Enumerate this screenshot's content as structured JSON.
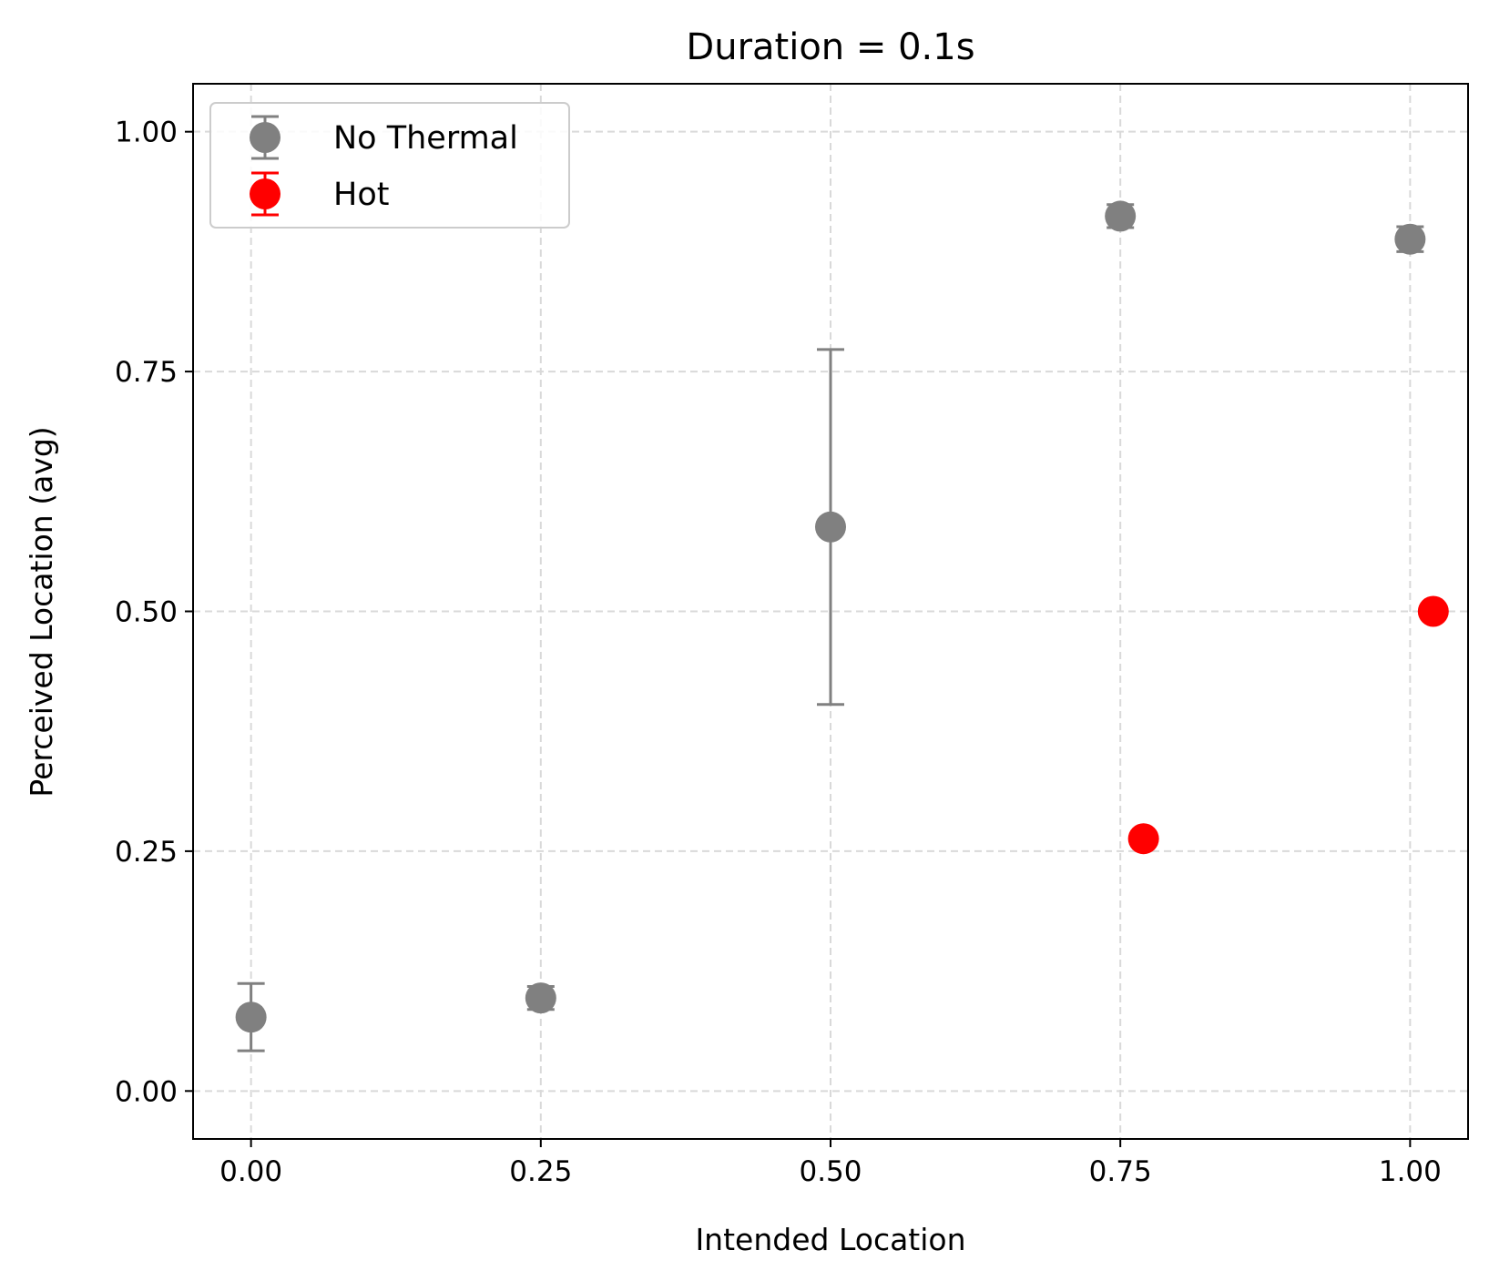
{
  "chart_data": {
    "type": "scatter",
    "title": "Duration = 0.1s",
    "xlabel": "Intended Location",
    "ylabel": "Perceived Location (avg)",
    "xlim": [
      -0.05,
      1.05
    ],
    "ylim": [
      -0.05,
      1.05
    ],
    "xticks": [
      0.0,
      0.25,
      0.5,
      0.75,
      1.0
    ],
    "xtick_labels": [
      "0.00",
      "0.25",
      "0.50",
      "0.75",
      "1.00"
    ],
    "yticks": [
      0.0,
      0.25,
      0.5,
      0.75,
      1.0
    ],
    "ytick_labels": [
      "0.00",
      "0.25",
      "0.50",
      "0.75",
      "1.00"
    ],
    "grid": true,
    "legend_position": "top-left",
    "series": [
      {
        "name": "No Thermal",
        "color": "#808080",
        "points": [
          {
            "x": 0.0,
            "y": 0.077,
            "err": 0.035
          },
          {
            "x": 0.25,
            "y": 0.097,
            "err": 0.012
          },
          {
            "x": 0.5,
            "y": 0.588,
            "err": 0.185
          },
          {
            "x": 0.75,
            "y": 0.912,
            "err": 0.012
          },
          {
            "x": 1.0,
            "y": 0.888,
            "err": 0.013
          }
        ]
      },
      {
        "name": "Hot",
        "color": "#ff0000",
        "points": [
          {
            "x": 0.77,
            "y": 0.263,
            "err": 0
          },
          {
            "x": 1.02,
            "y": 0.5,
            "err": 0
          }
        ]
      }
    ]
  }
}
